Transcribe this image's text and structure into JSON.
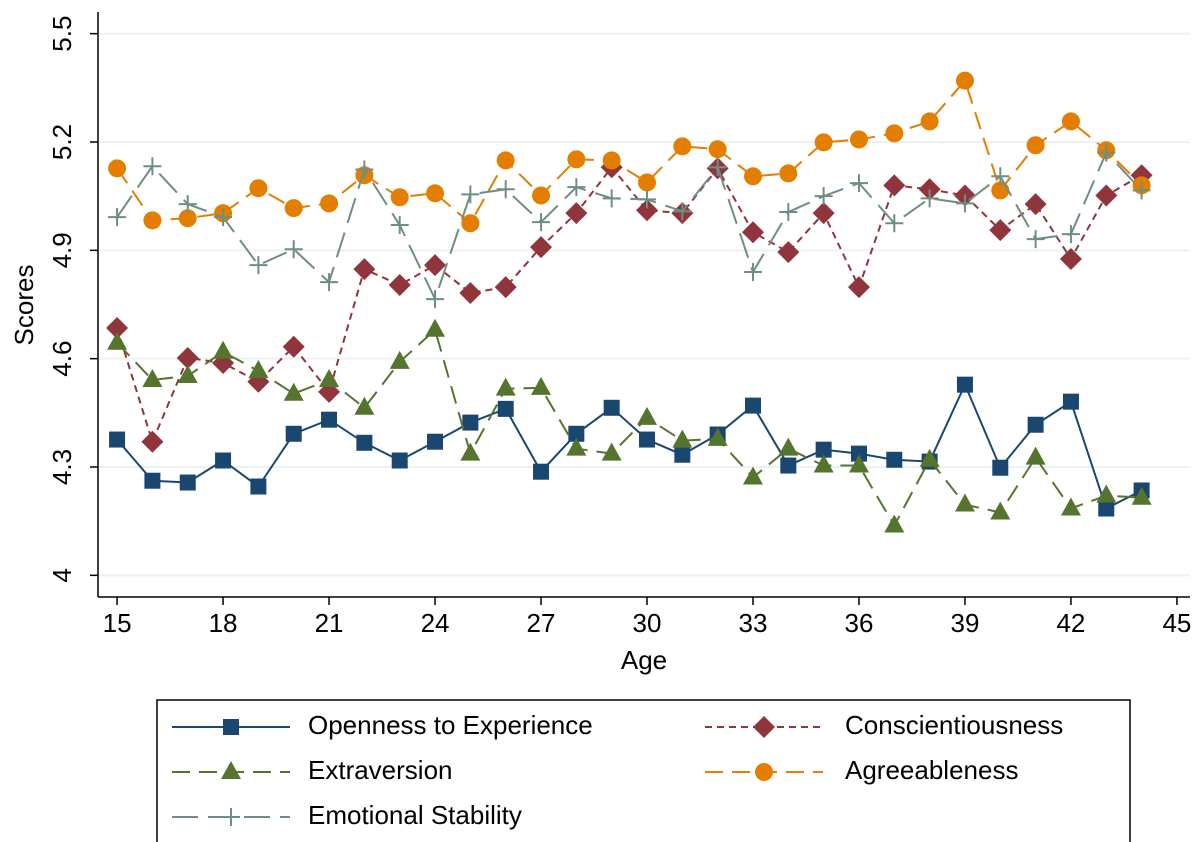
{
  "chart_data": {
    "type": "line",
    "x_label": "Age",
    "y_label": "Scores",
    "x": [
      15,
      16,
      17,
      18,
      19,
      20,
      21,
      22,
      23,
      24,
      25,
      26,
      27,
      28,
      29,
      30,
      31,
      32,
      33,
      34,
      35,
      36,
      37,
      38,
      39,
      40,
      41,
      42,
      43,
      44
    ],
    "xlim": [
      14.46,
      45.37
    ],
    "xticks": [
      15,
      18,
      21,
      24,
      27,
      30,
      33,
      36,
      39,
      42,
      45
    ],
    "ylim": [
      3.94,
      5.56
    ],
    "yticks": [
      4,
      4.3,
      4.6,
      4.9,
      5.2,
      5.5
    ],
    "grid": true,
    "series": [
      {
        "name": "Openness to Experience",
        "color": "#1a476f",
        "marker": "square",
        "dash": "none",
        "values": [
          4.376,
          4.262,
          4.257,
          4.318,
          4.246,
          4.392,
          4.431,
          4.367,
          4.318,
          4.37,
          4.423,
          4.461,
          4.287,
          4.392,
          4.464,
          4.376,
          4.334,
          4.39,
          4.47,
          4.304,
          4.348,
          4.337,
          4.32,
          4.315,
          4.528,
          4.298,
          4.417,
          4.481,
          4.185,
          4.235
        ]
      },
      {
        "name": "Conscientiousness",
        "color": "#90353b",
        "marker": "diamond",
        "dash": "7 5",
        "values": [
          4.685,
          4.37,
          4.602,
          4.588,
          4.536,
          4.633,
          4.508,
          4.848,
          4.804,
          4.859,
          4.782,
          4.798,
          4.909,
          5.003,
          5.13,
          5.011,
          5.003,
          5.127,
          4.95,
          4.895,
          5.003,
          4.798,
          5.08,
          5.069,
          5.052,
          4.956,
          5.028,
          4.876,
          5.052,
          5.108
        ]
      },
      {
        "name": "Extraversion",
        "color": "#55752f",
        "marker": "triangle",
        "dash": "18 9",
        "values": [
          4.644,
          4.541,
          4.552,
          4.619,
          4.566,
          4.503,
          4.541,
          4.464,
          4.591,
          4.68,
          4.337,
          4.517,
          4.519,
          4.351,
          4.337,
          4.436,
          4.373,
          4.378,
          4.271,
          4.351,
          4.304,
          4.304,
          4.138,
          4.32,
          4.196,
          4.174,
          4.326,
          4.185,
          4.221,
          4.215
        ]
      },
      {
        "name": "Agreeableness",
        "color": "#e37e00",
        "marker": "circle",
        "dash": "18 9",
        "values": [
          5.127,
          4.983,
          4.989,
          5.003,
          5.072,
          5.017,
          5.03,
          5.108,
          5.047,
          5.058,
          4.975,
          5.149,
          5.052,
          5.152,
          5.149,
          5.088,
          5.188,
          5.18,
          5.105,
          5.113,
          5.199,
          5.207,
          5.224,
          5.257,
          5.37,
          5.066,
          5.191,
          5.257,
          5.177,
          5.08
        ]
      },
      {
        "name": "Emotional Stability",
        "color": "#6e8e84",
        "marker": "plus",
        "dash": "26 10",
        "values": [
          4.992,
          5.133,
          5.028,
          4.992,
          4.859,
          4.903,
          4.812,
          5.124,
          4.97,
          4.765,
          5.055,
          5.069,
          4.978,
          5.075,
          5.044,
          5.041,
          5.008,
          5.13,
          4.84,
          5.006,
          5.05,
          5.086,
          4.975,
          5.044,
          5.03,
          5.105,
          4.931,
          4.945,
          5.171,
          5.066
        ]
      }
    ]
  }
}
